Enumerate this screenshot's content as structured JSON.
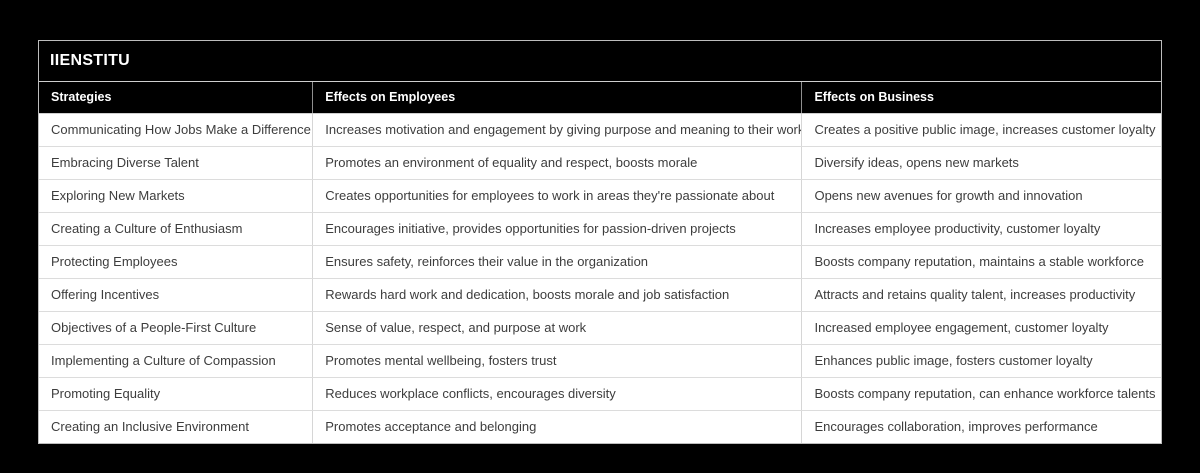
{
  "title": "IIENSTITU",
  "colors": {
    "page_background": "#000000",
    "title_bar_background": "#000000",
    "title_text": "#ffffff",
    "header_background": "#000000",
    "header_text": "#ffffff",
    "body_text": "#3d3d3d",
    "row_background": "#ffffff",
    "grid_line": "#d9d9d9"
  },
  "chart_data": {
    "type": "table",
    "title": "IIENSTITU",
    "columns": [
      "Strategies",
      "Effects on Employees",
      "Effects on Business"
    ],
    "rows": [
      [
        "Communicating How Jobs Make a Difference",
        "Increases motivation and engagement by giving purpose and meaning to their work",
        "Creates a positive public image, increases customer loyalty"
      ],
      [
        "Embracing Diverse Talent",
        "Promotes an environment of equality and respect, boosts morale",
        "Diversify ideas, opens new markets"
      ],
      [
        "Exploring New Markets",
        "Creates opportunities for employees to work in areas they're passionate about",
        "Opens new avenues for growth and innovation"
      ],
      [
        "Creating a Culture of Enthusiasm",
        "Encourages initiative, provides opportunities for passion-driven projects",
        "Increases employee productivity, customer loyalty"
      ],
      [
        "Protecting Employees",
        "Ensures safety, reinforces their value in the organization",
        "Boosts company reputation, maintains a stable workforce"
      ],
      [
        "Offering Incentives",
        "Rewards hard work and dedication, boosts morale and job satisfaction",
        "Attracts and retains quality talent, increases productivity"
      ],
      [
        "Objectives of a People-First Culture",
        "Sense of value, respect, and purpose at work",
        "Increased employee engagement, customer loyalty"
      ],
      [
        "Implementing a Culture of Compassion",
        "Promotes mental wellbeing, fosters trust",
        "Enhances public image, fosters customer loyalty"
      ],
      [
        "Promoting Equality",
        "Reduces workplace conflicts, encourages diversity",
        "Boosts company reputation, can enhance workforce talents"
      ],
      [
        "Creating an Inclusive Environment",
        "Promotes acceptance and belonging",
        "Encourages collaboration, improves performance"
      ]
    ]
  }
}
